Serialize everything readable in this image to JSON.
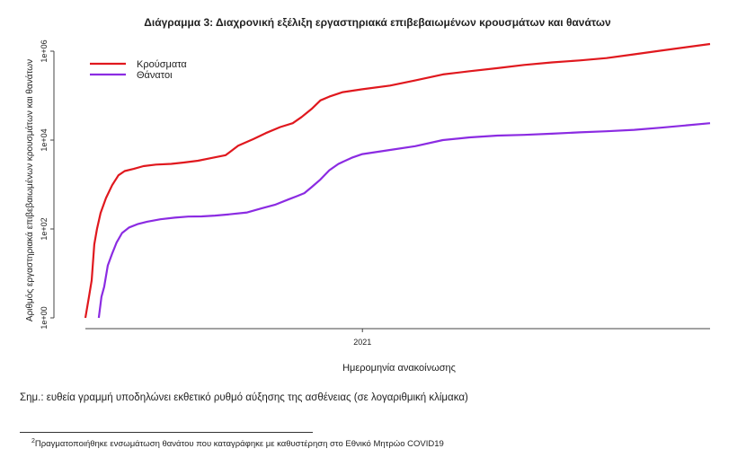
{
  "chart_data": {
    "type": "line",
    "title": "Διάγραμμα 3: Διαχρονική εξέλιξη εργαστηριακά επιβεβαιωμένων κρουσμάτων και θανάτων",
    "xlabel": "Ημερομηνία ανακοίνωσης",
    "ylabel": "Αριθμός εργαστηριακά επιβεβαιωμένων κρουσμάτων και θανάτων",
    "y_scale": "log",
    "ylim": [
      1,
      1000000
    ],
    "xlim": [
      "2020-02-26",
      "2022-01-25"
    ],
    "x_ticks": [
      {
        "x": "2021-01-01",
        "label": "2021"
      }
    ],
    "y_ticks": [
      {
        "y": 1,
        "label": "1e+00"
      },
      {
        "y": 100,
        "label": "1e+02"
      },
      {
        "y": 10000,
        "label": "1e+04"
      },
      {
        "y": 1000000,
        "label": "1e+06"
      }
    ],
    "legend_position": "top-left",
    "grid": false,
    "series": [
      {
        "name": "Κρούσματα",
        "color": "#e0181e",
        "points": [
          [
            "2020-02-26",
            1
          ],
          [
            "2020-03-01",
            3
          ],
          [
            "2020-03-04",
            7
          ],
          [
            "2020-03-07",
            45
          ],
          [
            "2020-03-10",
            100
          ],
          [
            "2020-03-14",
            228
          ],
          [
            "2020-03-20",
            495
          ],
          [
            "2020-03-27",
            966
          ],
          [
            "2020-04-03",
            1613
          ],
          [
            "2020-04-10",
            2011
          ],
          [
            "2020-04-20",
            2245
          ],
          [
            "2020-05-01",
            2591
          ],
          [
            "2020-05-15",
            2810
          ],
          [
            "2020-06-01",
            2917
          ],
          [
            "2020-06-15",
            3121
          ],
          [
            "2020-07-01",
            3432
          ],
          [
            "2020-07-15",
            3910
          ],
          [
            "2020-08-01",
            4587
          ],
          [
            "2020-08-15",
            7472
          ],
          [
            "2020-09-01",
            10524
          ],
          [
            "2020-09-15",
            14400
          ],
          [
            "2020-10-01",
            19613
          ],
          [
            "2020-10-15",
            24000
          ],
          [
            "2020-10-25",
            33000
          ],
          [
            "2020-11-05",
            50000
          ],
          [
            "2020-11-15",
            78000
          ],
          [
            "2020-11-25",
            95000
          ],
          [
            "2020-12-10",
            120000
          ],
          [
            "2021-01-01",
            138850
          ],
          [
            "2021-02-01",
            168000
          ],
          [
            "2021-03-01",
            220000
          ],
          [
            "2021-04-01",
            300000
          ],
          [
            "2021-05-01",
            355000
          ],
          [
            "2021-06-01",
            415000
          ],
          [
            "2021-07-01",
            490000
          ],
          [
            "2021-08-01",
            560000
          ],
          [
            "2021-09-01",
            620000
          ],
          [
            "2021-10-01",
            700000
          ],
          [
            "2021-11-01",
            850000
          ],
          [
            "2021-12-01",
            1030000
          ],
          [
            "2022-01-25",
            1450000
          ]
        ]
      },
      {
        "name": "Θάνατοι",
        "color": "#8b2be2",
        "points": [
          [
            "2020-03-12",
            1
          ],
          [
            "2020-03-15",
            3
          ],
          [
            "2020-03-18",
            5
          ],
          [
            "2020-03-22",
            15
          ],
          [
            "2020-03-27",
            28
          ],
          [
            "2020-04-01",
            50
          ],
          [
            "2020-04-07",
            81
          ],
          [
            "2020-04-15",
            108
          ],
          [
            "2020-04-25",
            130
          ],
          [
            "2020-05-05",
            146
          ],
          [
            "2020-05-20",
            165
          ],
          [
            "2020-06-05",
            180
          ],
          [
            "2020-06-20",
            190
          ],
          [
            "2020-07-05",
            192
          ],
          [
            "2020-07-20",
            200
          ],
          [
            "2020-08-05",
            213
          ],
          [
            "2020-08-25",
            235
          ],
          [
            "2020-09-10",
            290
          ],
          [
            "2020-09-25",
            350
          ],
          [
            "2020-10-10",
            460
          ],
          [
            "2020-10-20",
            550
          ],
          [
            "2020-10-28",
            640
          ],
          [
            "2020-11-05",
            870
          ],
          [
            "2020-11-15",
            1300
          ],
          [
            "2020-11-25",
            2100
          ],
          [
            "2020-12-05",
            2900
          ],
          [
            "2020-12-20",
            4000
          ],
          [
            "2021-01-01",
            4838
          ],
          [
            "2021-02-01",
            6000
          ],
          [
            "2021-03-01",
            7300
          ],
          [
            "2021-04-01",
            10000
          ],
          [
            "2021-05-01",
            11500
          ],
          [
            "2021-06-01",
            12600
          ],
          [
            "2021-07-01",
            13100
          ],
          [
            "2021-08-01",
            13900
          ],
          [
            "2021-09-01",
            14900
          ],
          [
            "2021-10-01",
            15800
          ],
          [
            "2021-11-01",
            17000
          ],
          [
            "2021-12-01",
            19000
          ],
          [
            "2022-01-25",
            24000
          ]
        ]
      }
    ]
  },
  "note": "Σημ.: ευθεία γραμμή υποδηλώνει εκθετικό ρυθμό αύξησης της ασθένειας (σε λογαριθμική κλίμακα)",
  "footnote": {
    "marker": "2",
    "text": "Πραγματοποιήθηκε ενσωμάτωση θανάτου που καταγράφηκε με καθυστέρηση στο Εθνικό Μητρώο COVID19"
  }
}
